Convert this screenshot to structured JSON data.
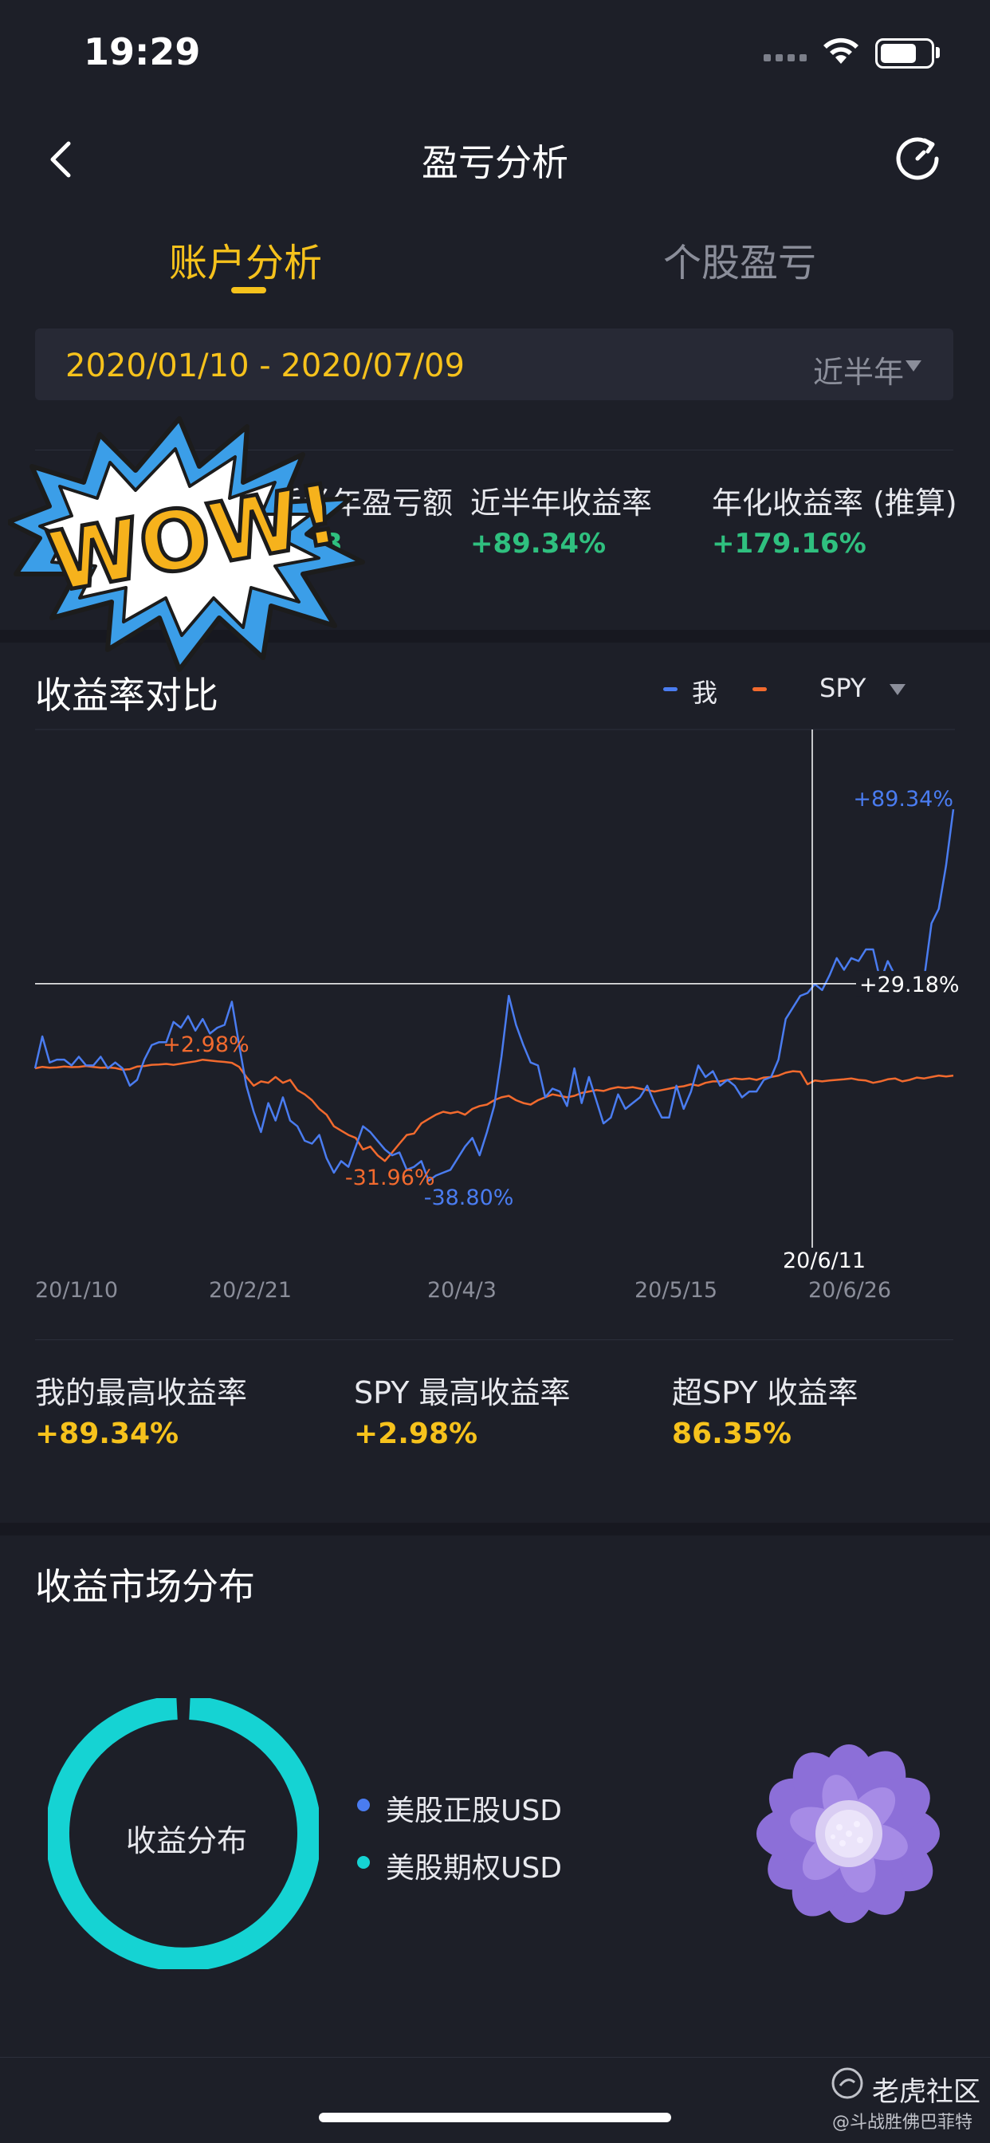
{
  "status_bar": {
    "time": "19:29"
  },
  "nav": {
    "title": "盈亏分析"
  },
  "tabs": [
    {
      "label": "账户分析",
      "active": true
    },
    {
      "label": "个股盈亏",
      "active": false
    }
  ],
  "date_range": {
    "text": "2020/01/10 - 2020/07/09",
    "period": "近半年"
  },
  "metrics": [
    {
      "label": "近半年盈亏额",
      "value": "3"
    },
    {
      "label": "近半年收益率",
      "value": "+89.34%"
    },
    {
      "label": "年化收益率 (推算)",
      "value": "+179.16%"
    }
  ],
  "sticker": {
    "text": "WOW!"
  },
  "comparison": {
    "title": "收益率对比",
    "legend_me": "我",
    "legend_spy": "SPY",
    "colors": {
      "me": "#4a7cf0",
      "spy": "#f26a2e"
    }
  },
  "chart_data": {
    "type": "line",
    "x_tick_labels": [
      "20/1/10",
      "20/2/21",
      "20/4/3",
      "20/5/15",
      "20/6/26"
    ],
    "series": [
      {
        "name": "我",
        "color": "#4a7cf0",
        "values": [
          0,
          11,
          2,
          3,
          3,
          1,
          4,
          1,
          1,
          4,
          0,
          2,
          0,
          -6,
          -4,
          3,
          8,
          9,
          9,
          16,
          14,
          18,
          13,
          17,
          12,
          14,
          15,
          23,
          8,
          -6,
          -15,
          -22,
          -12,
          -18,
          -10,
          -18,
          -20,
          -25,
          -26,
          -23,
          -31,
          -36,
          -32,
          -34,
          -27,
          -20,
          -22,
          -25,
          -28,
          -30,
          -29,
          -35,
          -34,
          -32,
          -38.8,
          -37,
          -36,
          -35,
          -31,
          -27,
          -24,
          -30,
          -22,
          -13,
          4,
          25,
          15,
          8,
          2,
          1,
          -10,
          -7,
          -8,
          -13,
          0,
          -12,
          -3,
          -11,
          -19,
          -17,
          -9,
          -14,
          -12,
          -10,
          -6,
          -12,
          -17,
          -17,
          -6,
          -14,
          -8,
          1,
          -3,
          -1,
          -6,
          -4,
          -6,
          -10,
          -8,
          -8,
          -4,
          -3,
          3,
          17,
          21,
          25,
          26,
          29,
          27,
          32,
          38,
          34,
          38,
          37,
          41,
          41,
          30,
          37,
          32,
          30,
          32,
          33,
          31,
          50,
          55,
          70,
          89.34
        ]
      },
      {
        "name": "SPY",
        "color": "#f26a2e",
        "values": [
          0,
          0.5,
          0.2,
          0.3,
          0.6,
          0.4,
          0.5,
          0.8,
          0.5,
          0.2,
          0.3,
          0.1,
          -0.5,
          -0.3,
          0.6,
          0.8,
          1.2,
          1.3,
          1.5,
          1.2,
          1.6,
          2.0,
          2.4,
          2.98,
          2.7,
          2.4,
          2.2,
          1.9,
          0.5,
          -3,
          -6,
          -4.5,
          -5,
          -3,
          -5,
          -4,
          -7.5,
          -9,
          -11,
          -14,
          -16,
          -20,
          -21.5,
          -23,
          -24,
          -28,
          -27,
          -30,
          -31.96,
          -29,
          -26,
          -23,
          -22.5,
          -19,
          -17.5,
          -16,
          -15,
          -15.5,
          -15,
          -16,
          -14,
          -13,
          -12.5,
          -11,
          -10,
          -9.5,
          -11,
          -12,
          -12.5,
          -11,
          -10,
          -9,
          -9.5,
          -10,
          -9.5,
          -8.5,
          -8,
          -7.5,
          -7.8,
          -7,
          -6.5,
          -6.8,
          -6.5,
          -7,
          -7.5,
          -8,
          -7.5,
          -7,
          -6.5,
          -6.2,
          -5.5,
          -6,
          -5,
          -4.5,
          -4.5,
          -4,
          -3.5,
          -3.8,
          -3.5,
          -4,
          -3.2,
          -3,
          -2.5,
          -1.5,
          -1,
          -1.2,
          -5.5,
          -4.2,
          -4.5,
          -4.2,
          -4,
          -3.8,
          -3.5,
          -4,
          -4.2,
          -5,
          -4.5,
          -3.8,
          -3.5,
          -4.5,
          -4,
          -3.2,
          -3.5,
          -3,
          -2.5,
          -2.8,
          -2.5
        ]
      }
    ],
    "annotations": {
      "me_max": "+89.34%",
      "me_min": "-38.80%",
      "spy_max": "+2.98%",
      "spy_min": "-31.96%",
      "crosshair_value": "+29.18%",
      "crosshair_date": "20/6/11"
    },
    "ylim": [
      -55,
      110
    ]
  },
  "stats": [
    {
      "label": "我的最高收益率",
      "value": "+89.34%"
    },
    {
      "label": "SPY 最高收益率",
      "value": "+2.98%"
    },
    {
      "label": "超SPY 收益率",
      "value": "86.35%"
    }
  ],
  "distribution": {
    "title": "收益市场分布",
    "donut_label": "收益分布",
    "items": [
      {
        "label": "美股正股USD",
        "color": "#4a7cf0"
      },
      {
        "label": "美股期权USD",
        "color": "#15d3d3"
      }
    ],
    "ring_color": "#15d3d3"
  },
  "watermark": {
    "brand": "老虎社区",
    "user": "@斗战胜佛巴菲特"
  }
}
